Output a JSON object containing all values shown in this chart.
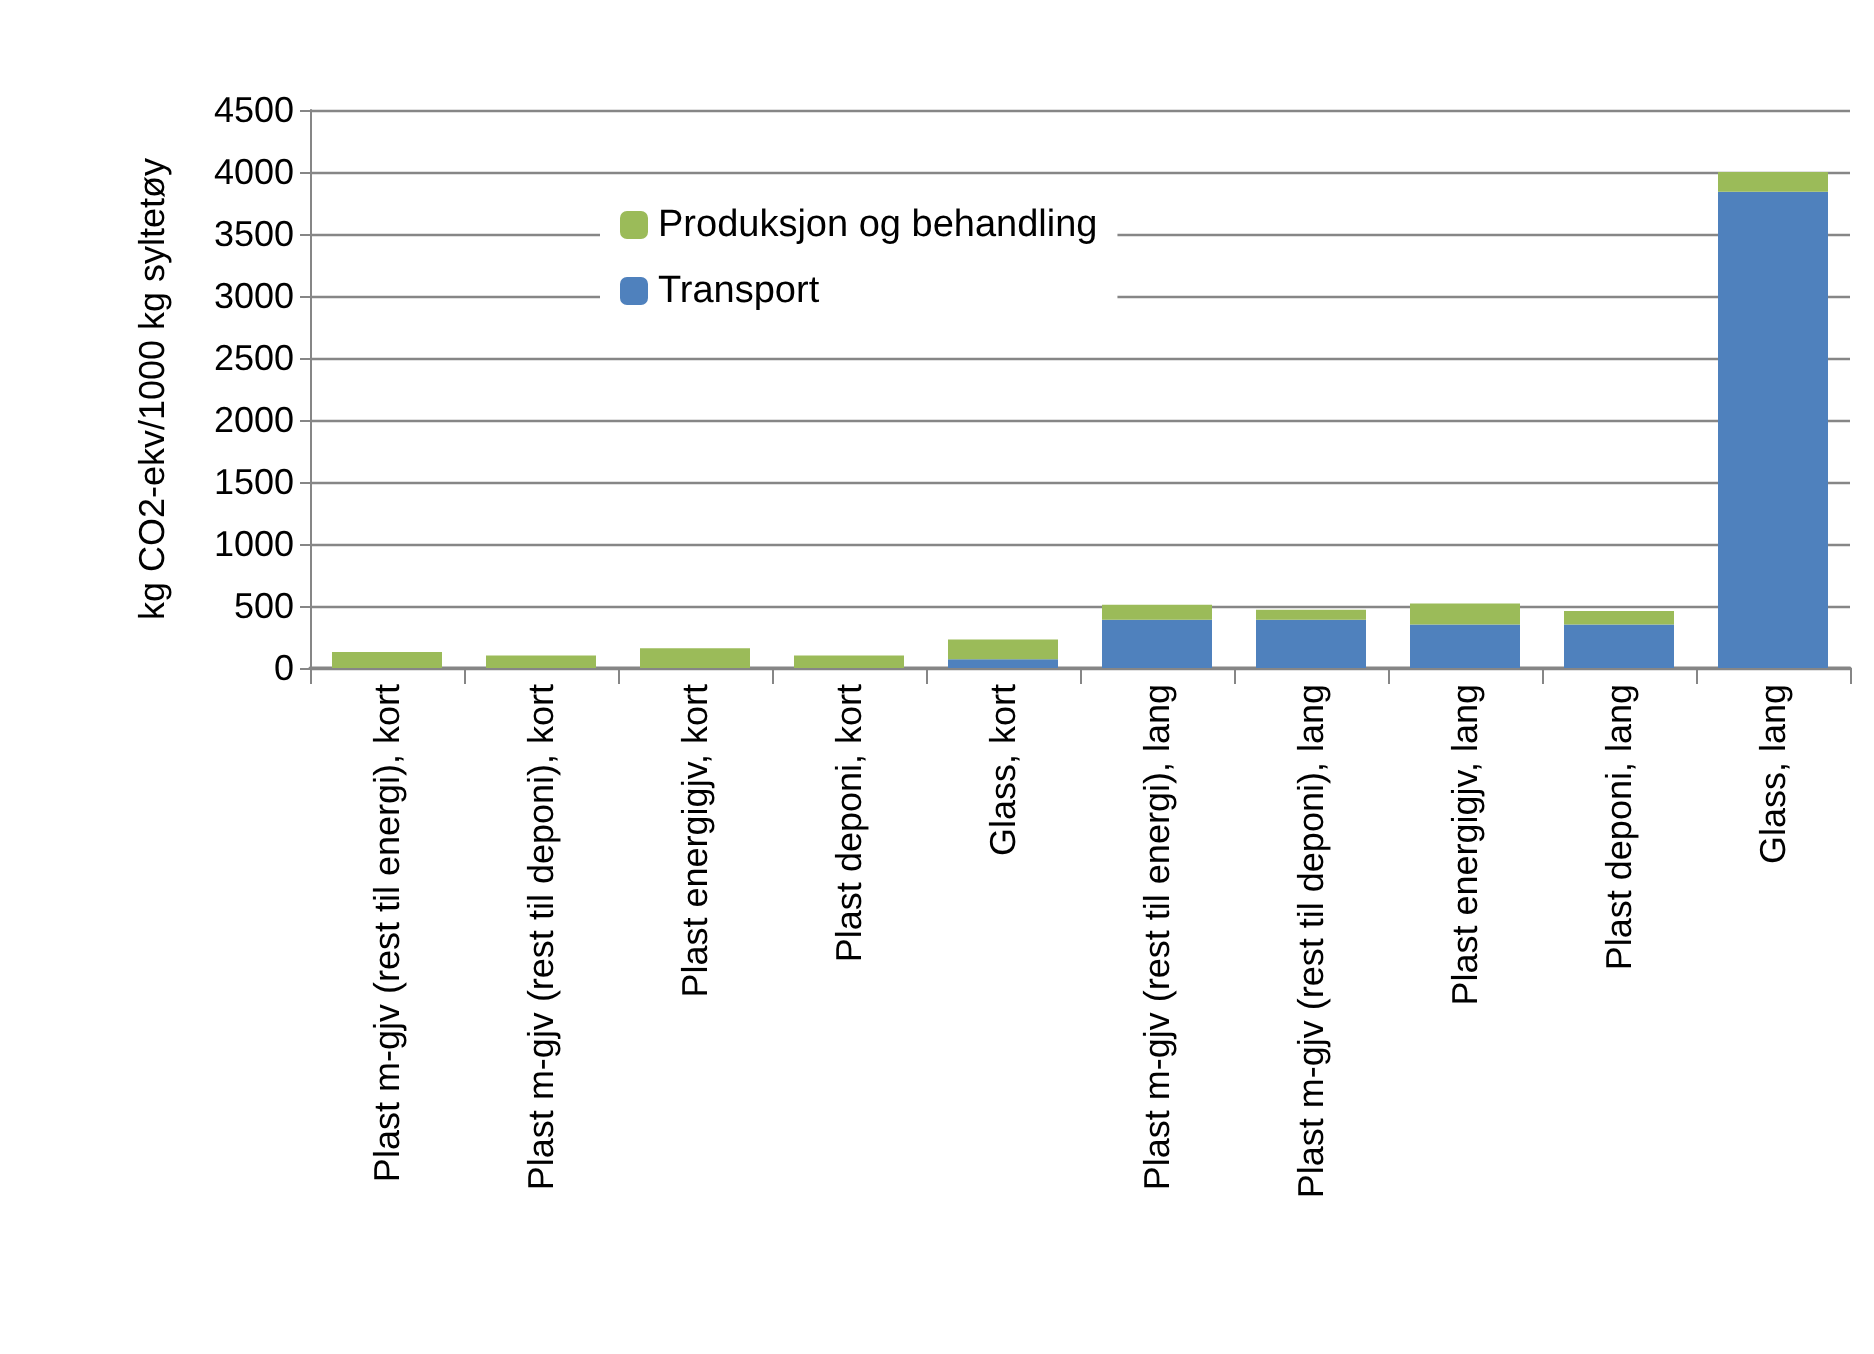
{
  "chart_data": {
    "type": "bar",
    "stacked": true,
    "ylabel": "kg CO2-ekv/1000 kg syltetøy",
    "categories": [
      "Plast m-gjv (rest til energi), kort",
      "Plast m-gjv (rest til deponi), kort",
      "Plast energigjv, kort",
      "Plast deponi, kort",
      "Glass, kort",
      "Plast m-gjv (rest til energi), lang",
      "Plast m-gjv (rest til deponi), lang",
      "Plast energigjv, lang",
      "Plast deponi, lang",
      "Glass, lang"
    ],
    "series": [
      {
        "name": "Transport",
        "color": "#4f81bd",
        "values": [
          0,
          0,
          0,
          0,
          70,
          390,
          390,
          350,
          350,
          3840
        ]
      },
      {
        "name": "Produksjon og behandling",
        "color": "#9bbb59",
        "values": [
          130,
          100,
          160,
          100,
          160,
          120,
          80,
          170,
          110,
          160
        ]
      }
    ],
    "ylim": [
      0,
      4500
    ],
    "yticks": [
      0,
      500,
      1000,
      1500,
      2000,
      2500,
      3000,
      3500,
      4000,
      4500
    ],
    "grid": "y",
    "legend": "top"
  }
}
